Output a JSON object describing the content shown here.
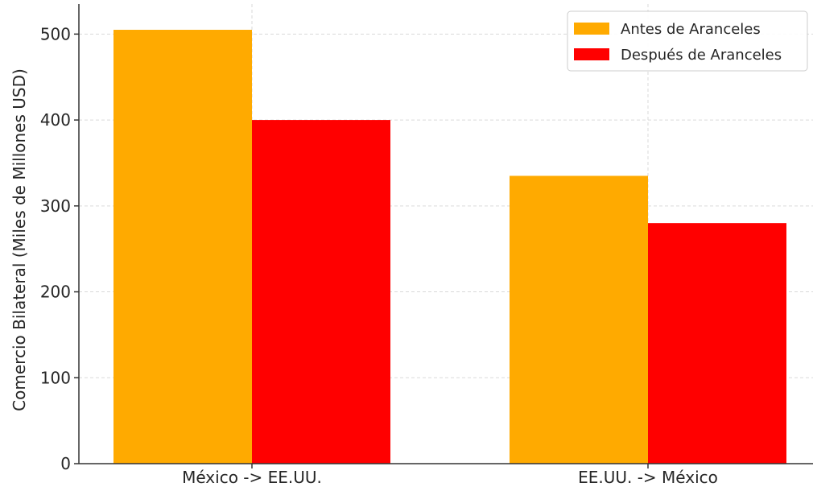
{
  "chart_data": {
    "type": "bar",
    "title": "",
    "xlabel": "",
    "ylabel": "Comercio Bilateral (Miles de Millones USD)",
    "categories": [
      "México -> EE.UU.",
      "EE.UU. -> México"
    ],
    "series": [
      {
        "name": "Antes de Aranceles",
        "color": "#FFAA00",
        "values": [
          505,
          335
        ]
      },
      {
        "name": "Después de Aranceles",
        "color": "#FF0000",
        "values": [
          400,
          280
        ]
      }
    ],
    "ylim": [
      0,
      535
    ],
    "yticks": [
      0,
      100,
      200,
      300,
      400,
      500
    ],
    "grid": true,
    "legend_position": "top-right"
  }
}
